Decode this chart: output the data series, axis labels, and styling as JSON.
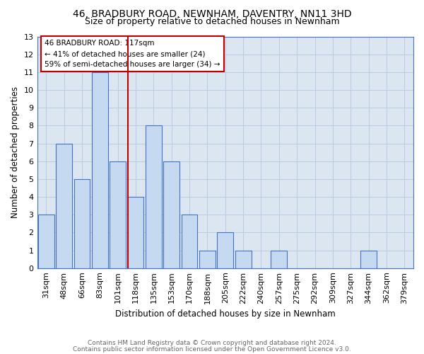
{
  "title1": "46, BRADBURY ROAD, NEWNHAM, DAVENTRY, NN11 3HD",
  "title2": "Size of property relative to detached houses in Newnham",
  "xlabel": "Distribution of detached houses by size in Newnham",
  "ylabel": "Number of detached properties",
  "footnote1": "Contains HM Land Registry data © Crown copyright and database right 2024.",
  "footnote2": "Contains public sector information licensed under the Open Government Licence v3.0.",
  "categories": [
    "31sqm",
    "48sqm",
    "66sqm",
    "83sqm",
    "101sqm",
    "118sqm",
    "135sqm",
    "153sqm",
    "170sqm",
    "188sqm",
    "205sqm",
    "222sqm",
    "240sqm",
    "257sqm",
    "275sqm",
    "292sqm",
    "309sqm",
    "327sqm",
    "344sqm",
    "362sqm",
    "379sqm"
  ],
  "values": [
    3,
    7,
    5,
    11,
    6,
    4,
    8,
    6,
    3,
    1,
    2,
    1,
    0,
    1,
    0,
    0,
    0,
    0,
    1,
    0,
    0
  ],
  "bar_color": "#c5d9f1",
  "bar_edge_color": "#4472c4",
  "vline_index": 5,
  "vline_color": "#c00000",
  "annotation_title": "46 BRADBURY ROAD: 117sqm",
  "annotation_line1": "← 41% of detached houses are smaller (24)",
  "annotation_line2": "59% of semi-detached houses are larger (34) →",
  "annotation_box_color": "#ffffff",
  "annotation_box_edge_color": "#c00000",
  "ylim": [
    0,
    13
  ],
  "yticks": [
    0,
    1,
    2,
    3,
    4,
    5,
    6,
    7,
    8,
    9,
    10,
    11,
    12,
    13
  ],
  "grid_color": "#b8cce4",
  "bg_color": "#dce6f1",
  "title1_fontsize": 10,
  "title2_fontsize": 9,
  "xlabel_fontsize": 8.5,
  "ylabel_fontsize": 8.5,
  "tick_fontsize": 8,
  "ann_fontsize": 7.5,
  "footnote_fontsize": 6.5
}
